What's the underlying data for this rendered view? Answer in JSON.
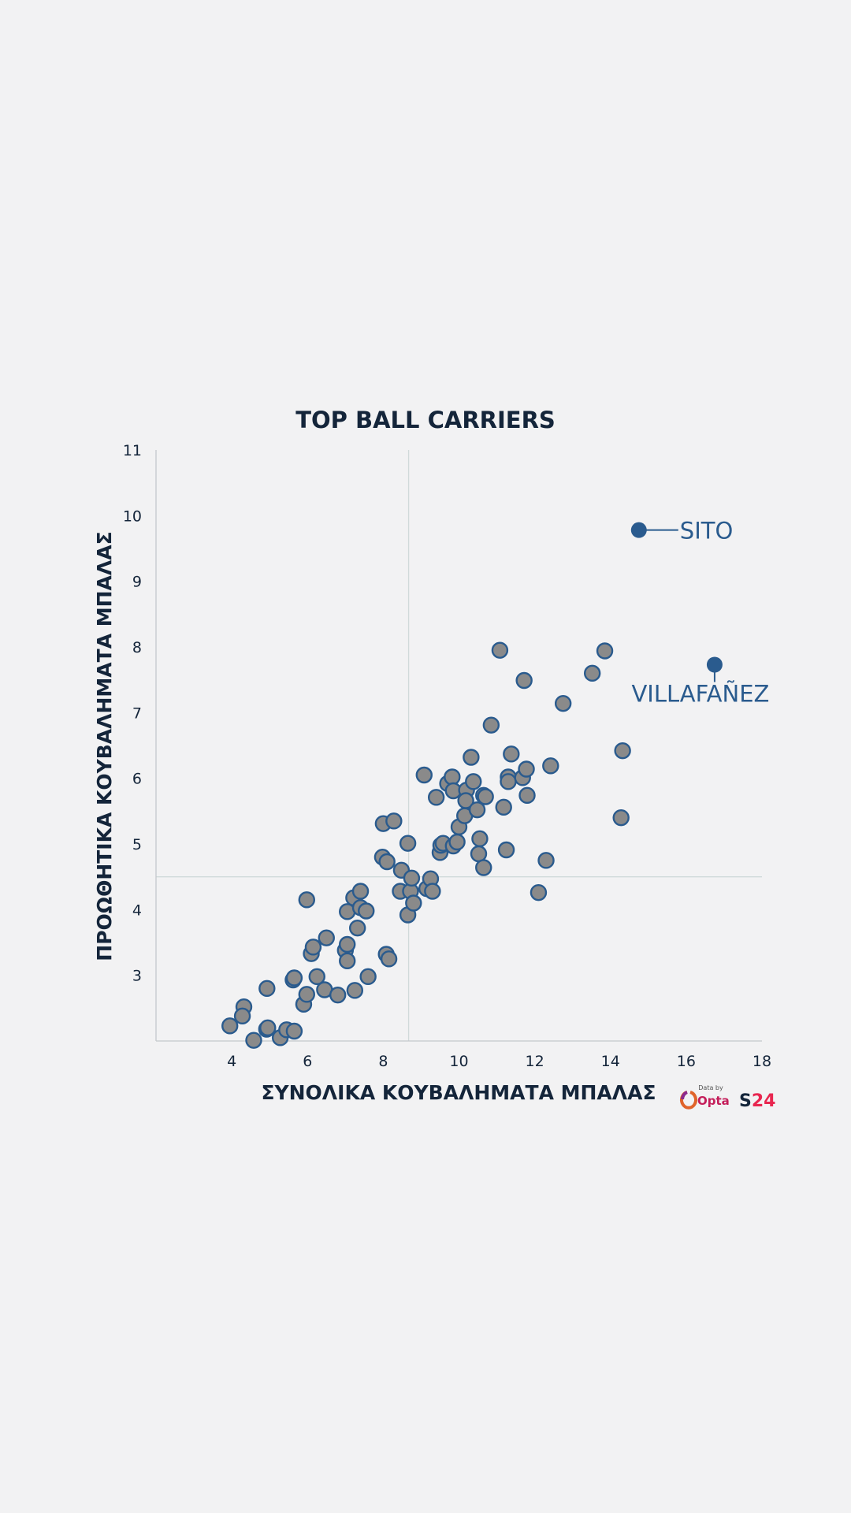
{
  "chart_data": {
    "type": "scatter",
    "title": "TOP BALL CARRIERS",
    "xlabel": "ΣΥΝΟΛΙΚΑ ΚΟΥΒΑΛΗΜΑΤΑ ΜΠΑΛΑΣ",
    "ylabel": "ΠΡΟΩΘΗΤΙΚΑ ΚΟΥΒΑΛΗΜΑΤΑ ΜΠΑΛΑΣ",
    "xlim": [
      2,
      18
    ],
    "ylim": [
      2,
      11
    ],
    "x_ticks": [
      4,
      6,
      8,
      10,
      12,
      14,
      16,
      18
    ],
    "y_ticks": [
      3,
      4,
      5,
      6,
      7,
      8,
      9,
      10,
      11
    ],
    "reference_lines": {
      "x": 8.67,
      "y": 4.5
    },
    "colors": {
      "point_fill": "#8a8a8a",
      "point_stroke": "#2a5b8e",
      "highlight": "#2a5b8e",
      "text": "#14253a",
      "ref_line": "#d0dada"
    },
    "points": [
      [
        3.95,
        2.23
      ],
      [
        4.32,
        2.52
      ],
      [
        4.28,
        2.38
      ],
      [
        4.58,
        2.01
      ],
      [
        4.92,
        2.18
      ],
      [
        4.93,
        2.8
      ],
      [
        4.95,
        2.2
      ],
      [
        5.28,
        2.05
      ],
      [
        5.45,
        2.17
      ],
      [
        5.65,
        2.15
      ],
      [
        5.62,
        2.93
      ],
      [
        5.65,
        2.96
      ],
      [
        5.9,
        2.56
      ],
      [
        5.98,
        2.71
      ],
      [
        5.98,
        4.15
      ],
      [
        6.1,
        3.33
      ],
      [
        6.15,
        3.43
      ],
      [
        6.25,
        2.98
      ],
      [
        6.45,
        2.78
      ],
      [
        6.5,
        3.57
      ],
      [
        6.8,
        2.7
      ],
      [
        7.0,
        3.38
      ],
      [
        7.05,
        3.47
      ],
      [
        7.05,
        3.22
      ],
      [
        7.05,
        3.97
      ],
      [
        7.22,
        4.18
      ],
      [
        7.25,
        2.77
      ],
      [
        7.32,
        3.72
      ],
      [
        7.4,
        4.03
      ],
      [
        7.4,
        4.28
      ],
      [
        7.55,
        3.98
      ],
      [
        7.6,
        2.98
      ],
      [
        7.98,
        4.8
      ],
      [
        8.0,
        5.31
      ],
      [
        8.08,
        3.32
      ],
      [
        8.1,
        4.73
      ],
      [
        8.15,
        3.25
      ],
      [
        8.28,
        5.35
      ],
      [
        8.45,
        4.28
      ],
      [
        8.48,
        4.6
      ],
      [
        8.65,
        5.01
      ],
      [
        8.65,
        3.92
      ],
      [
        8.72,
        4.28
      ],
      [
        8.75,
        4.48
      ],
      [
        8.8,
        4.1
      ],
      [
        9.08,
        6.05
      ],
      [
        9.15,
        4.32
      ],
      [
        9.25,
        4.47
      ],
      [
        9.3,
        4.28
      ],
      [
        9.4,
        5.71
      ],
      [
        9.5,
        4.87
      ],
      [
        9.52,
        4.98
      ],
      [
        9.58,
        5.01
      ],
      [
        9.7,
        5.92
      ],
      [
        9.82,
        6.02
      ],
      [
        9.85,
        4.97
      ],
      [
        9.85,
        5.81
      ],
      [
        9.95,
        5.03
      ],
      [
        10.0,
        5.26
      ],
      [
        10.15,
        5.43
      ],
      [
        10.2,
        5.82
      ],
      [
        10.18,
        5.66
      ],
      [
        10.32,
        6.32
      ],
      [
        10.38,
        5.95
      ],
      [
        10.48,
        5.52
      ],
      [
        10.52,
        4.85
      ],
      [
        10.55,
        5.08
      ],
      [
        10.65,
        5.74
      ],
      [
        10.65,
        4.64
      ],
      [
        10.7,
        5.72
      ],
      [
        10.85,
        6.81
      ],
      [
        11.08,
        7.95
      ],
      [
        11.18,
        5.56
      ],
      [
        11.25,
        4.91
      ],
      [
        11.3,
        6.02
      ],
      [
        11.3,
        5.95
      ],
      [
        11.38,
        6.37
      ],
      [
        11.68,
        6.01
      ],
      [
        11.72,
        7.49
      ],
      [
        11.78,
        6.14
      ],
      [
        11.8,
        5.74
      ],
      [
        12.1,
        4.26
      ],
      [
        12.3,
        4.75
      ],
      [
        12.42,
        6.19
      ],
      [
        12.75,
        7.14
      ],
      [
        13.52,
        7.6
      ],
      [
        13.85,
        7.94
      ],
      [
        14.28,
        5.4
      ],
      [
        14.32,
        6.42
      ]
    ],
    "highlighted": [
      {
        "name": "SITO",
        "x": 14.75,
        "y": 9.78
      },
      {
        "name": "VILLAFAÑEZ",
        "x": 16.75,
        "y": 7.73
      }
    ]
  },
  "credits": {
    "data_by": "Data by",
    "opta": "Opta",
    "s24_a": "S",
    "s24_b": "24"
  }
}
